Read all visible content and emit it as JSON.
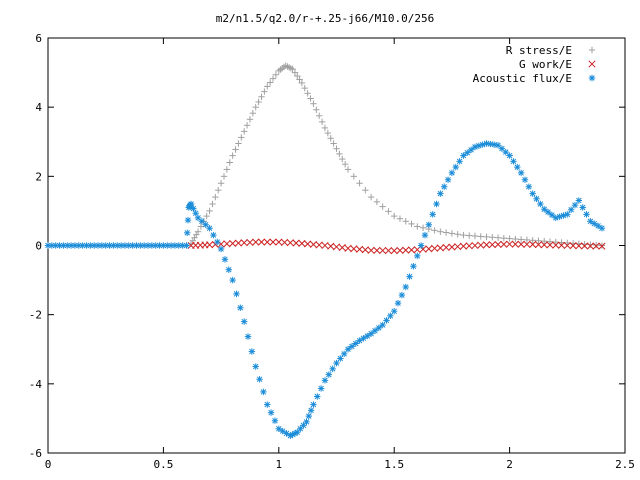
{
  "chart_data": {
    "type": "scatter",
    "title": "m2/n1.5/q2.0/r-+.25-j66/M10.0/256",
    "xlabel": "",
    "ylabel": "",
    "xlim": [
      0,
      2.5
    ],
    "ylim": [
      -6,
      6
    ],
    "xticks": [
      "0",
      "0.5",
      "1",
      "1.5",
      "2",
      "2.5"
    ],
    "yticks": [
      "-6",
      "-4",
      "-2",
      "0",
      "2",
      "4",
      "6"
    ],
    "grid": false,
    "legend_position": "top-right",
    "series": [
      {
        "name": "R stress/E",
        "marker": "+",
        "color": "#a0a0a0",
        "x": [
          0.62,
          0.65,
          0.7,
          0.75,
          0.8,
          0.85,
          0.9,
          0.95,
          1.0,
          1.03,
          1.06,
          1.1,
          1.15,
          1.2,
          1.25,
          1.3,
          1.4,
          1.5,
          1.6,
          1.7,
          1.8,
          1.9,
          2.0,
          2.1,
          2.2,
          2.3,
          2.4
        ],
        "y": [
          0.05,
          0.4,
          1.0,
          1.8,
          2.6,
          3.3,
          4.0,
          4.6,
          5.05,
          5.2,
          5.1,
          4.7,
          4.1,
          3.4,
          2.8,
          2.2,
          1.4,
          0.85,
          0.55,
          0.4,
          0.3,
          0.25,
          0.2,
          0.15,
          0.1,
          0.05,
          0.0
        ]
      },
      {
        "name": "G work/E",
        "marker": "x",
        "color": "#cc2020",
        "x": [
          0.62,
          0.7,
          0.8,
          0.9,
          1.0,
          1.1,
          1.2,
          1.3,
          1.4,
          1.5,
          1.6,
          1.7,
          1.8,
          1.9,
          2.0,
          2.1,
          2.2,
          2.3,
          2.4
        ],
        "y": [
          0.0,
          0.02,
          0.06,
          0.1,
          0.1,
          0.06,
          0.0,
          -0.08,
          -0.14,
          -0.15,
          -0.12,
          -0.07,
          -0.02,
          0.02,
          0.04,
          0.03,
          0.01,
          -0.01,
          -0.02
        ]
      },
      {
        "name": "Acoustic flux/E",
        "marker": "*",
        "color": "#1a8cd8",
        "x": [
          0.0,
          0.05,
          0.1,
          0.15,
          0.2,
          0.25,
          0.3,
          0.35,
          0.4,
          0.45,
          0.5,
          0.55,
          0.6,
          0.61,
          0.62,
          0.65,
          0.7,
          0.75,
          0.8,
          0.85,
          0.9,
          0.95,
          1.0,
          1.05,
          1.08,
          1.12,
          1.15,
          1.2,
          1.25,
          1.3,
          1.35,
          1.4,
          1.45,
          1.5,
          1.55,
          1.6,
          1.65,
          1.7,
          1.75,
          1.8,
          1.85,
          1.9,
          1.95,
          2.0,
          2.05,
          2.1,
          2.15,
          2.2,
          2.25,
          2.3,
          2.35,
          2.4
        ],
        "y": [
          0,
          0,
          0,
          0,
          0,
          0,
          0,
          0,
          0,
          0,
          0,
          0,
          0,
          1.1,
          1.2,
          0.8,
          0.5,
          -0.1,
          -1.0,
          -2.2,
          -3.5,
          -4.6,
          -5.3,
          -5.5,
          -5.4,
          -5.1,
          -4.6,
          -3.9,
          -3.4,
          -3.0,
          -2.75,
          -2.55,
          -2.3,
          -1.9,
          -1.2,
          -0.3,
          0.6,
          1.5,
          2.1,
          2.6,
          2.85,
          2.95,
          2.9,
          2.6,
          2.1,
          1.5,
          1.05,
          0.8,
          0.9,
          1.3,
          0.7,
          0.5
        ]
      }
    ]
  }
}
